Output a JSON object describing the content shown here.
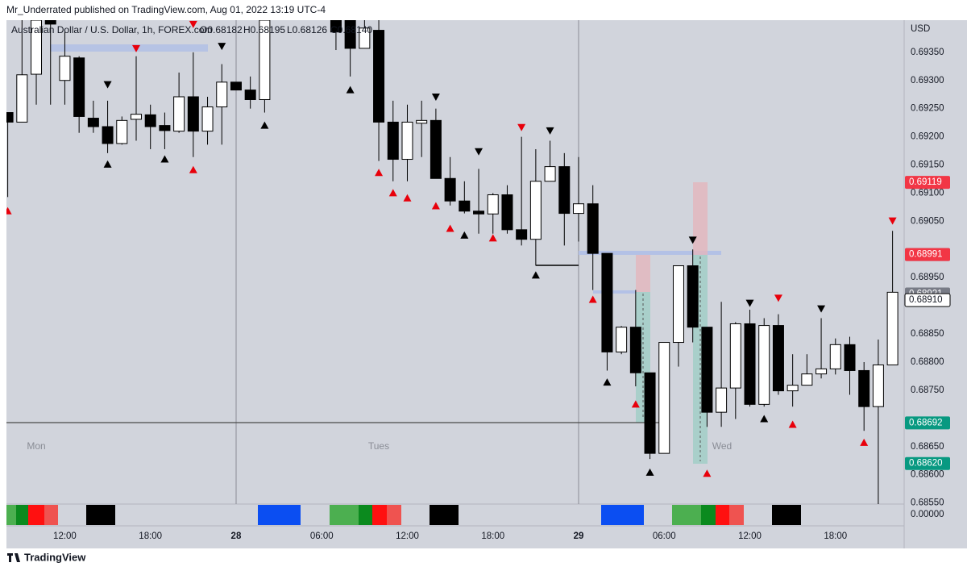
{
  "header": "Mr_Underrated published on TradingView.com, Aug 01, 2022 13:19 UTC-4",
  "footer": "TradingView",
  "chart_data": {
    "type": "candlestick",
    "title": "Australian Dollar / U.S. Dollar, 1h, FOREX.com",
    "ohlc_labels": [
      {
        "value": 0.68182,
        "label": "O0.68182"
      },
      {
        "value": 0.68195,
        "label": "H0.68195"
      },
      {
        "value": 0.68126,
        "label": "L0.68126"
      },
      {
        "value": 0.6814,
        "label": "C0.68140"
      }
    ],
    "currency": "USD",
    "day_labels": [
      "Mon",
      "Tues",
      "Wed"
    ],
    "categories": [
      null,
      null,
      null,
      null,
      "12:00",
      null,
      null,
      null,
      null,
      null,
      "18:00",
      null,
      null,
      null,
      null,
      null,
      "28",
      null,
      null,
      null,
      null,
      null,
      "06:00",
      null,
      null,
      null,
      null,
      null,
      "12:00",
      null,
      null,
      null,
      null,
      null,
      "18:00",
      null,
      null,
      null,
      null,
      null,
      "29",
      null,
      null,
      null,
      null,
      null,
      "06:00",
      null,
      null,
      null,
      null,
      null,
      "12:00",
      null,
      null,
      null,
      null,
      null,
      "18:00",
      null,
      null,
      null,
      null
    ],
    "open": [
      0.69243,
      0.69226,
      0.69311,
      0.69407,
      0.693,
      0.6934,
      0.69233,
      0.69218,
      0.69188,
      0.69231,
      0.69239,
      0.6922,
      0.6921,
      0.69271,
      0.6921,
      0.69253,
      0.69297,
      0.69283,
      0.69266,
      null,
      null,
      null,
      null,
      0.69407,
      0.69407,
      0.69357,
      0.69389,
      0.69226,
      0.6916,
      0.69224,
      0.69229,
      0.69126,
      0.69086,
      0.69068,
      0.69063,
      0.69097,
      0.69035,
      0.69018,
      0.69121,
      0.69147,
      0.69064,
      0.69081,
      0.68993,
      0.68818,
      0.68862,
      0.68781,
      0.68638,
      0.68835,
      0.68971,
      0.68862,
      0.68711,
      0.68754,
      0.68868,
      0.68725,
      0.68865,
      0.68749,
      0.68759,
      0.68779,
      0.68788,
      0.68831,
      0.68785,
      0.68721,
      0.68795
    ],
    "high": [
      0.69243,
      0.69407,
      0.69407,
      0.69407,
      0.69386,
      0.69343,
      0.69264,
      0.69264,
      0.69236,
      0.69343,
      0.69257,
      0.69243,
      0.69314,
      0.6935,
      0.69271,
      0.69329,
      0.69297,
      0.69307,
      0.69407,
      null,
      null,
      null,
      null,
      0.69407,
      0.69407,
      0.69407,
      0.69407,
      0.69264,
      0.69257,
      0.69264,
      0.6925,
      0.69164,
      0.69121,
      0.69143,
      0.691,
      0.69114,
      0.692,
      0.69178,
      0.69193,
      0.69171,
      0.69164,
      0.69114,
      0.68993,
      0.68864,
      0.68928,
      0.68781,
      0.68835,
      0.68971,
      0.69,
      0.68862,
      0.68907,
      0.68871,
      0.68893,
      0.68878,
      0.68885,
      0.68814,
      0.68814,
      0.68878,
      0.68842,
      0.68845,
      0.688,
      0.6884,
      0.69033
    ],
    "low": [
      0.69093,
      0.69226,
      0.69257,
      0.69257,
      0.69257,
      0.69207,
      0.69207,
      0.69171,
      0.69186,
      0.69193,
      0.69178,
      0.69178,
      0.69207,
      0.69164,
      0.69186,
      0.69186,
      0.69283,
      0.6925,
      0.69243,
      null,
      null,
      null,
      null,
      0.69354,
      0.69307,
      0.69357,
      0.69157,
      0.69121,
      0.69121,
      0.69164,
      0.69126,
      0.69078,
      0.69064,
      0.69028,
      0.69028,
      0.69028,
      0.69007,
      0.68971,
      0.69121,
      0.69007,
      0.69014,
      0.68928,
      0.68785,
      0.68814,
      0.68757,
      0.68628,
      0.68638,
      0.68792,
      0.68835,
      0.68685,
      0.68685,
      0.68699,
      0.68721,
      0.68721,
      0.68742,
      0.68721,
      0.68759,
      0.68771,
      0.68778,
      0.68742,
      0.68678,
      0.68548,
      0.68795
    ],
    "close": [
      0.69226,
      0.6931,
      0.69407,
      0.694,
      0.69343,
      0.69236,
      0.69218,
      0.69188,
      0.69229,
      0.6924,
      0.69218,
      0.69211,
      0.69271,
      0.6921,
      0.69253,
      0.69297,
      0.69283,
      0.69266,
      0.69407,
      null,
      null,
      null,
      null,
      0.69386,
      0.69357,
      0.69393,
      0.69226,
      0.6916,
      0.69226,
      0.69229,
      0.69126,
      0.69086,
      0.69068,
      0.69063,
      0.69097,
      0.69035,
      0.69018,
      0.69121,
      0.69147,
      0.69064,
      0.69081,
      0.68993,
      0.68818,
      0.68862,
      0.68781,
      0.68638,
      0.68835,
      0.68971,
      0.68862,
      0.68711,
      0.68754,
      0.68868,
      0.68725,
      0.68865,
      0.68749,
      0.68759,
      0.68779,
      0.68788,
      0.68831,
      0.68785,
      0.68721,
      0.68795,
      0.68924
    ],
    "up_color": "#ffffff",
    "down_color": "#000000",
    "wick_color": "#000000",
    "ylim": [
      0.68548,
      0.69407
    ],
    "yticks": [
      {
        "value": 0.6935,
        "label": "0.69350"
      },
      {
        "value": 0.693,
        "label": "0.69300"
      },
      {
        "value": 0.6925,
        "label": "0.69250"
      },
      {
        "value": 0.692,
        "label": "0.69200"
      },
      {
        "value": 0.6915,
        "label": "0.69150"
      },
      {
        "value": 0.691,
        "label": "0.69100"
      },
      {
        "value": 0.6905,
        "label": "0.69050"
      },
      {
        "value": 0.6895,
        "label": "0.68950"
      },
      {
        "value": 0.6885,
        "label": "0.68850"
      },
      {
        "value": 0.688,
        "label": "0.68800"
      },
      {
        "value": 0.6875,
        "label": "0.68750"
      },
      {
        "value": 0.6865,
        "label": "0.68650"
      },
      {
        "value": 0.686,
        "label": "0.68600"
      },
      {
        "value": 0.6855,
        "label": "0.68550"
      }
    ],
    "price_labels": [
      {
        "value": 0.69119,
        "label": "0.69119",
        "color": "#f23645"
      },
      {
        "value": 0.68991,
        "label": "0.68991",
        "color": "#787b86"
      },
      {
        "value": 0.68991,
        "label": "0.68991",
        "color": "#f23645"
      },
      {
        "value": 0.68921,
        "label": "0.68921",
        "color": "#787b86"
      },
      {
        "value": 0.6891,
        "label": "0.68910",
        "color": "#ffffff"
      },
      {
        "value": 0.68692,
        "label": "0.68692",
        "color": "#089981"
      },
      {
        "value": 0.6862,
        "label": "0.68620",
        "color": "#089981"
      }
    ],
    "indicator_value": {
      "value": 0,
      "label": "0.00000"
    },
    "markers": [
      {
        "index": 0,
        "price": 0.69068,
        "direction": "up",
        "color": "#e8000b"
      },
      {
        "index": 9,
        "price": 0.69357,
        "direction": "down",
        "color": "#e8000b"
      },
      {
        "index": 7,
        "price": 0.69293,
        "direction": "down",
        "color": "#000000"
      },
      {
        "index": 7,
        "price": 0.69151,
        "direction": "up",
        "color": "#000000"
      },
      {
        "index": 11,
        "price": 0.6916,
        "direction": "up",
        "color": "#000000"
      },
      {
        "index": 13,
        "price": 0.69141,
        "direction": "up",
        "color": "#e8000b"
      },
      {
        "index": 13,
        "price": 0.694,
        "direction": "down",
        "color": "#e8000b"
      },
      {
        "index": 15,
        "price": 0.69361,
        "direction": "down",
        "color": "#000000"
      },
      {
        "index": 18,
        "price": 0.6922,
        "direction": "up",
        "color": "#000000"
      },
      {
        "index": 24,
        "price": 0.69283,
        "direction": "up",
        "color": "#000000"
      },
      {
        "index": 26,
        "price": 0.69136,
        "direction": "up",
        "color": "#e8000b"
      },
      {
        "index": 27,
        "price": 0.691,
        "direction": "up",
        "color": "#e8000b"
      },
      {
        "index": 28,
        "price": 0.69091,
        "direction": "up",
        "color": "#e8000b"
      },
      {
        "index": 30,
        "price": 0.69271,
        "direction": "down",
        "color": "#000000"
      },
      {
        "index": 30,
        "price": 0.69077,
        "direction": "up",
        "color": "#e8000b"
      },
      {
        "index": 31,
        "price": 0.69037,
        "direction": "up",
        "color": "#e8000b"
      },
      {
        "index": 32,
        "price": 0.69025,
        "direction": "up",
        "color": "#000000"
      },
      {
        "index": 33,
        "price": 0.69174,
        "direction": "down",
        "color": "#000000"
      },
      {
        "index": 34,
        "price": 0.6902,
        "direction": "up",
        "color": "#e8000b"
      },
      {
        "index": 36,
        "price": 0.69217,
        "direction": "down",
        "color": "#e8000b"
      },
      {
        "index": 38,
        "price": 0.69211,
        "direction": "down",
        "color": "#000000"
      },
      {
        "index": 37,
        "price": 0.68954,
        "direction": "up",
        "color": "#000000"
      },
      {
        "index": 41,
        "price": 0.68911,
        "direction": "up",
        "color": "#e8000b"
      },
      {
        "index": 42,
        "price": 0.68764,
        "direction": "up",
        "color": "#000000"
      },
      {
        "index": 44,
        "price": 0.68725,
        "direction": "up",
        "color": "#e8000b"
      },
      {
        "index": 45,
        "price": 0.68604,
        "direction": "up",
        "color": "#000000"
      },
      {
        "index": 48,
        "price": 0.69017,
        "direction": "down",
        "color": "#000000"
      },
      {
        "index": 49,
        "price": 0.68602,
        "direction": "up",
        "color": "#e8000b"
      },
      {
        "index": 52,
        "price": 0.68905,
        "direction": "down",
        "color": "#000000"
      },
      {
        "index": 53,
        "price": 0.68699,
        "direction": "up",
        "color": "#000000"
      },
      {
        "index": 54,
        "price": 0.68914,
        "direction": "down",
        "color": "#e8000b"
      },
      {
        "index": 55,
        "price": 0.68689,
        "direction": "up",
        "color": "#e8000b"
      },
      {
        "index": 57,
        "price": 0.68895,
        "direction": "down",
        "color": "#000000"
      },
      {
        "index": 60,
        "price": 0.68657,
        "direction": "up",
        "color": "#e8000b"
      },
      {
        "index": 62,
        "price": 0.69051,
        "direction": "down",
        "color": "#e8000b"
      }
    ]
  }
}
